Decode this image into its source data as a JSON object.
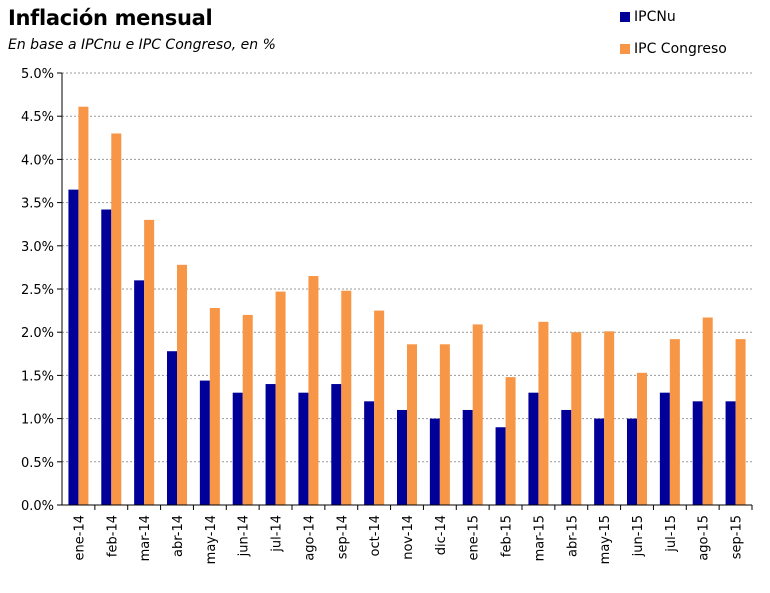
{
  "chart_data": {
    "type": "bar",
    "title": "Inflación mensual",
    "subtitle": "En base a IPCnu e IPC Congreso, en %",
    "categories": [
      "ene-14",
      "feb-14",
      "mar-14",
      "abr-14",
      "may-14",
      "jun-14",
      "jul-14",
      "ago-14",
      "sep-14",
      "oct-14",
      "nov-14",
      "dic-14",
      "ene-15",
      "feb-15",
      "mar-15",
      "abr-15",
      "may-15",
      "jun-15",
      "jul-15",
      "ago-15",
      "sep-15"
    ],
    "series": [
      {
        "name": "IPCNu",
        "color": "#000099",
        "values": [
          3.65,
          3.42,
          2.6,
          1.78,
          1.44,
          1.3,
          1.4,
          1.3,
          1.4,
          1.2,
          1.1,
          1.0,
          1.1,
          0.9,
          1.3,
          1.1,
          1.0,
          1.0,
          1.3,
          1.2,
          1.2
        ]
      },
      {
        "name": "IPC Congreso",
        "color": "#F79646",
        "values": [
          4.61,
          4.3,
          3.3,
          2.78,
          2.28,
          2.2,
          2.47,
          2.65,
          2.48,
          2.25,
          1.86,
          1.86,
          2.09,
          1.48,
          2.12,
          2.0,
          2.01,
          1.53,
          1.92,
          2.17,
          1.92
        ]
      }
    ],
    "y_ticks": [
      "0.0%",
      "0.5%",
      "1.0%",
      "1.5%",
      "2.0%",
      "2.5%",
      "3.0%",
      "3.5%",
      "4.0%",
      "4.5%",
      "5.0%"
    ],
    "ylim": [
      0,
      5
    ],
    "grid": true,
    "legend_position": "top-right"
  }
}
